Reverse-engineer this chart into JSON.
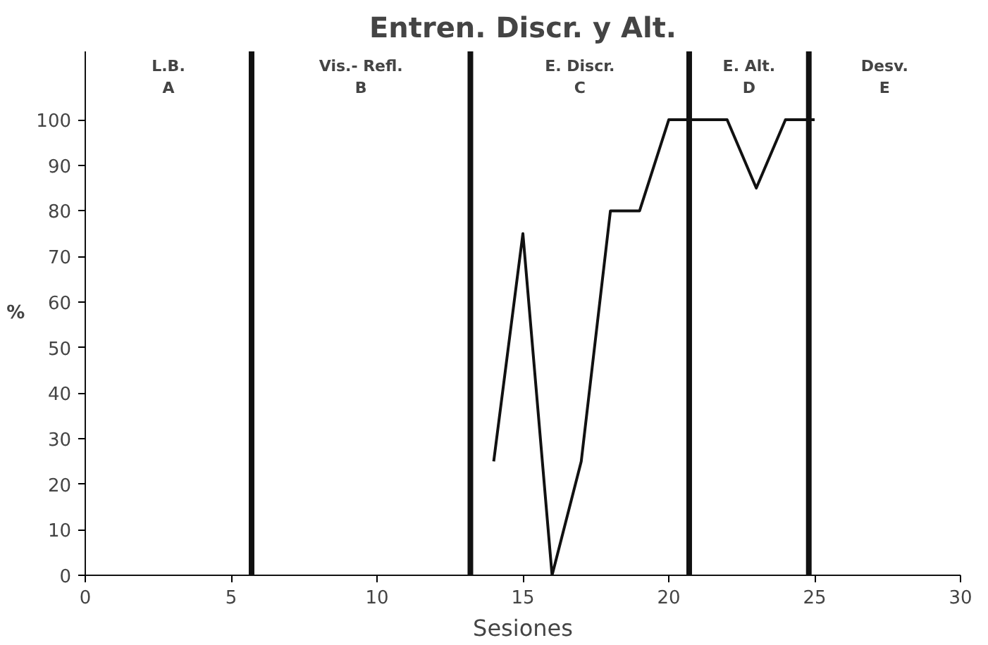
{
  "chart_data": {
    "type": "line",
    "title": "Entren. Discr. y Alt.",
    "xlabel": "Sesiones",
    "ylabel": "%",
    "x": [
      14,
      15,
      16,
      17,
      18,
      19,
      20,
      21,
      22,
      23,
      24,
      25
    ],
    "series": [
      {
        "color": "#111111",
        "values": [
          25,
          75,
          0,
          25,
          80,
          80,
          100,
          100,
          100,
          85,
          100,
          100
        ]
      }
    ],
    "xlim": [
      0,
      30
    ],
    "xticks": [
      0,
      5,
      10,
      15,
      20,
      25,
      30
    ],
    "ylim": [
      0,
      115
    ],
    "yticks": [
      0,
      10,
      20,
      30,
      40,
      50,
      60,
      70,
      80,
      90,
      100
    ],
    "ref_lines": [
      {
        "axis": "x",
        "value": 5.7,
        "color": "#111111"
      },
      {
        "axis": "x",
        "value": 13.2,
        "color": "#111111"
      },
      {
        "axis": "x",
        "value": 20.7,
        "color": "#111111"
      },
      {
        "axis": "x",
        "value": 24.8,
        "color": "#111111"
      }
    ],
    "annotations": [
      "L.B.\nA",
      "Vis.- Refl.\nB",
      "E. Discr.\nC",
      "E. Alt.\nD",
      "Desv.\nE"
    ],
    "grid": false,
    "marker": "none",
    "line_style": "solid"
  }
}
